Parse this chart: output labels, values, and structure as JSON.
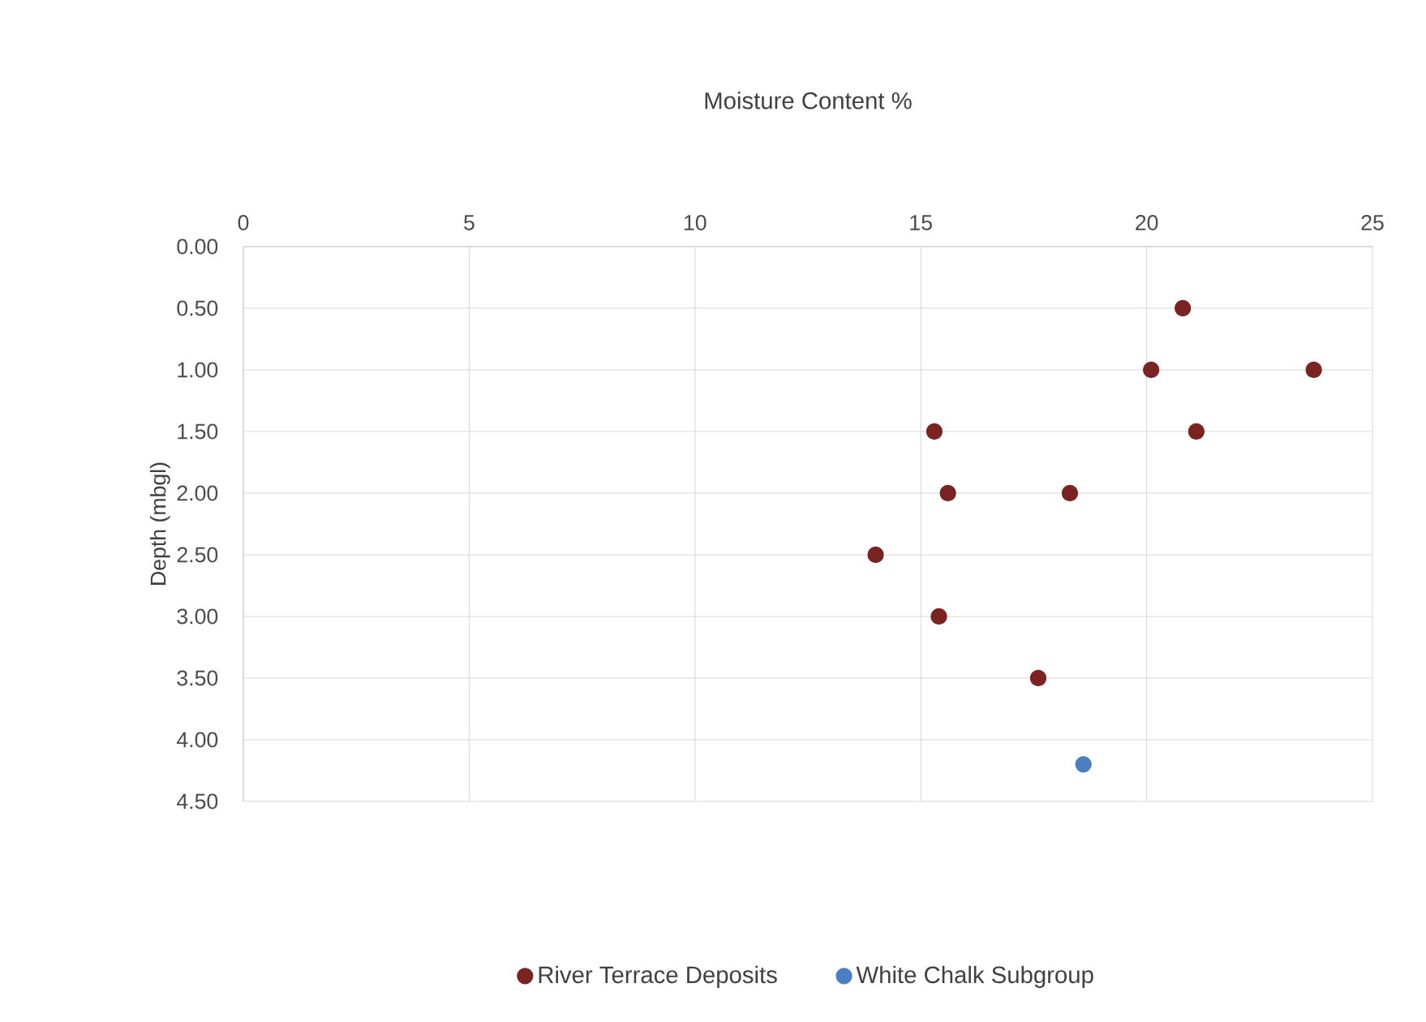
{
  "chart_data": {
    "type": "scatter",
    "title": "Moisture Content %",
    "ylabel": "Depth (mbgl)",
    "xlim": [
      0,
      25
    ],
    "xticks": [
      0,
      5,
      10,
      15,
      20,
      25
    ],
    "ylim": [
      4.5,
      0
    ],
    "yticks": [
      {
        "value": 0,
        "label": "0.00"
      },
      {
        "value": 0.5,
        "label": "0.50"
      },
      {
        "value": 1,
        "label": "1.00"
      },
      {
        "value": 1.5,
        "label": "1.50"
      },
      {
        "value": 2,
        "label": "2.00"
      },
      {
        "value": 2.5,
        "label": "2.50"
      },
      {
        "value": 3,
        "label": "3.00"
      },
      {
        "value": 3.5,
        "label": "3.50"
      },
      {
        "value": 4,
        "label": "4.00"
      },
      {
        "value": 4.5,
        "label": "4.50"
      }
    ],
    "series": [
      {
        "name": "River Terrace Deposits",
        "color": "#7b2320",
        "x": [
          20.8,
          20.1,
          23.7,
          15.3,
          21.1,
          15.6,
          18.3,
          14.0,
          15.4,
          17.6
        ],
        "values": [
          0.5,
          1.0,
          1.0,
          1.5,
          1.5,
          2.0,
          2.0,
          2.5,
          3.0,
          3.5
        ]
      },
      {
        "name": "White Chalk Subgroup",
        "color": "#4a7fc1",
        "x": [
          18.6
        ],
        "values": [
          4.2
        ]
      }
    ],
    "grid": true,
    "legend": "bottom",
    "marker": "circle"
  }
}
